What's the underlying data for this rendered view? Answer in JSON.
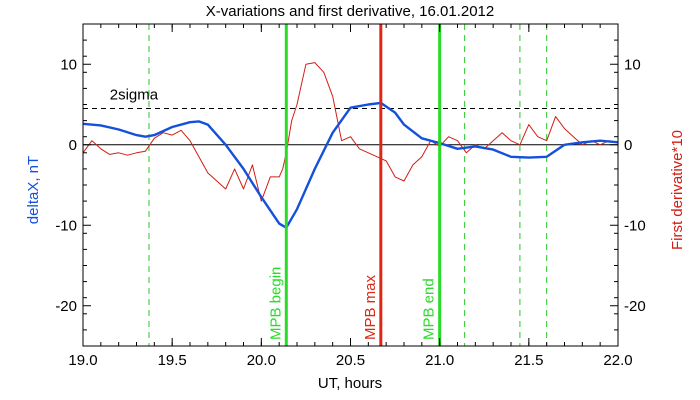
{
  "chart_data": {
    "type": "line",
    "title": "X-variations and first derivative, 16.01.2012",
    "xlabel": "UT, hours",
    "ylabel_left": "deltaX, nT",
    "ylabel_right": "First derivative*10",
    "xlim": [
      19.0,
      22.0
    ],
    "ylim": [
      -25,
      15
    ],
    "x_ticks": [
      {
        "v": 19.0,
        "label": "19.0"
      },
      {
        "v": 19.5,
        "label": "19.5"
      },
      {
        "v": 20.0,
        "label": "20.0"
      },
      {
        "v": 20.5,
        "label": "20.5"
      },
      {
        "v": 21.0,
        "label": "21.0"
      },
      {
        "v": 21.5,
        "label": "21.5"
      },
      {
        "v": 22.0,
        "label": "22.0"
      }
    ],
    "y_ticks": [
      {
        "v": 10,
        "label": "10"
      },
      {
        "v": 0,
        "label": "0"
      },
      {
        "v": -10,
        "label": "-10"
      },
      {
        "v": -20,
        "label": "-20"
      }
    ],
    "colors": {
      "deltaX": "#1450dc",
      "derivative": "#d21e14",
      "mpb_lines": "#28dc28",
      "mpb_max": "#dc2814",
      "sigma": "#000000",
      "dashed_green": "#28c828"
    },
    "series": [
      {
        "key": "deltaX",
        "x": [
          19.0,
          19.1,
          19.2,
          19.3,
          19.35,
          19.4,
          19.5,
          19.6,
          19.65,
          19.7,
          19.8,
          19.9,
          20.0,
          20.1,
          20.14,
          20.2,
          20.3,
          20.4,
          20.5,
          20.6,
          20.67,
          20.75,
          20.8,
          20.9,
          21.0,
          21.1,
          21.2,
          21.3,
          21.4,
          21.5,
          21.6,
          21.7,
          21.8,
          21.9,
          22.0
        ],
        "y": [
          2.6,
          2.4,
          1.9,
          1.2,
          1.0,
          1.2,
          2.2,
          2.8,
          2.9,
          2.5,
          0.0,
          -3.0,
          -6.5,
          -9.8,
          -10.3,
          -8.0,
          -3.0,
          1.5,
          4.6,
          5.0,
          5.2,
          4.0,
          2.5,
          0.8,
          0.2,
          -0.5,
          -0.2,
          -0.6,
          -1.5,
          -1.6,
          -1.5,
          0.0,
          0.3,
          0.5,
          0.3
        ]
      },
      {
        "key": "derivative",
        "x": [
          19.0,
          19.05,
          19.1,
          19.15,
          19.2,
          19.25,
          19.3,
          19.35,
          19.4,
          19.45,
          19.5,
          19.55,
          19.6,
          19.65,
          19.7,
          19.75,
          19.8,
          19.85,
          19.9,
          19.95,
          20.0,
          20.05,
          20.1,
          20.12,
          20.14,
          20.17,
          20.2,
          20.25,
          20.3,
          20.35,
          20.4,
          20.45,
          20.5,
          20.55,
          20.6,
          20.65,
          20.7,
          20.75,
          20.8,
          20.85,
          20.9,
          20.95,
          21.0,
          21.05,
          21.1,
          21.15,
          21.2,
          21.25,
          21.3,
          21.35,
          21.4,
          21.45,
          21.5,
          21.55,
          21.6,
          21.65,
          21.7,
          21.75,
          21.8,
          21.85,
          21.9,
          21.95,
          22.0
        ],
        "y": [
          -1.0,
          0.5,
          -0.5,
          -1.2,
          -1.0,
          -1.3,
          -1.0,
          -0.8,
          0.8,
          1.5,
          1.2,
          1.8,
          0.5,
          -1.5,
          -3.5,
          -4.5,
          -5.5,
          -3.0,
          -5.5,
          -2.5,
          -7.0,
          -4.0,
          -4.0,
          -3.0,
          -1.0,
          3.0,
          5.0,
          10.0,
          10.2,
          9.0,
          6.0,
          0.5,
          1.0,
          -0.5,
          -1.0,
          -1.5,
          -2.0,
          -4.0,
          -4.5,
          -2.5,
          -1.5,
          0.5,
          -0.2,
          1.0,
          0.5,
          -1.0,
          0.0,
          -0.5,
          0.5,
          1.5,
          0.5,
          0.0,
          2.5,
          1.0,
          0.5,
          3.5,
          2.0,
          1.0,
          0.0,
          0.5,
          0.0,
          0.5,
          0.3
        ]
      }
    ],
    "sigma_level": 4.5,
    "sigma_label": "2sigma",
    "vlines": [
      {
        "x": 20.14,
        "color": "#28dc28",
        "label": "MPB begin"
      },
      {
        "x": 20.67,
        "color": "#dc2814",
        "label": "MPB max"
      },
      {
        "x": 21.0,
        "color": "#28dc28",
        "label": "MPB end"
      }
    ],
    "dashed_vlines": [
      19.37,
      21.14,
      21.45,
      21.6
    ]
  }
}
